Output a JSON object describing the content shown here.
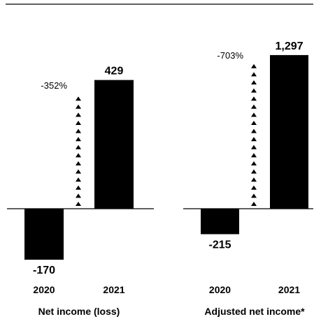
{
  "chart_data": [
    {
      "type": "bar",
      "title": "Net income (loss)",
      "categories": [
        "2020",
        "2021"
      ],
      "values": [
        -170,
        429
      ],
      "value_labels": [
        "-170",
        "429"
      ],
      "change_label": "-352%",
      "bar_color": "#000000"
    },
    {
      "type": "bar",
      "title": "Adjusted net income*",
      "categories": [
        "2020",
        "2021"
      ],
      "values": [
        -215,
        1297
      ],
      "value_labels": [
        "-215",
        "1,297"
      ],
      "change_label": "-703%",
      "bar_color": "#000000"
    }
  ]
}
